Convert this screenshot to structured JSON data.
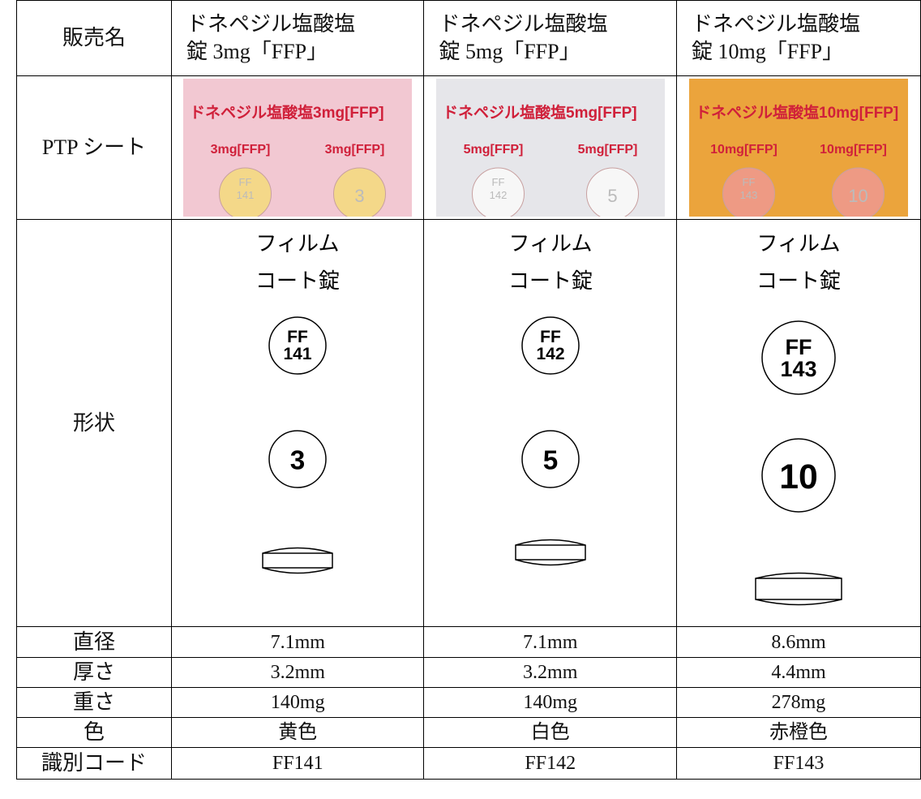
{
  "table": {
    "row_labels": [
      "販売名",
      "PTP シート",
      "形状",
      "直径",
      "厚さ",
      "重さ",
      "色",
      "識別コード"
    ],
    "products": [
      {
        "name": [
          "ドネペジル塩酸塩",
          "錠 3mg「FFP」"
        ],
        "ptp": {
          "title": "ドネペジル塩酸塩3mg[FFP]",
          "tab": "3mg[FFP]",
          "imprint": [
            "FF",
            "141"
          ],
          "back": "3"
        },
        "shape": {
          "form": [
            "フィルム",
            "コート錠"
          ],
          "front": [
            "FF",
            "141"
          ],
          "back": "3"
        },
        "diameter": "7.1mm",
        "thickness": "3.2mm",
        "weight": "140mg",
        "color": "黄色",
        "code": "FF141"
      },
      {
        "name": [
          "ドネペジル塩酸塩",
          "錠 5mg「FFP」"
        ],
        "ptp": {
          "title": "ドネペジル塩酸塩5mg[FFP]",
          "tab": "5mg[FFP]",
          "imprint": [
            "FF",
            "142"
          ],
          "back": "5"
        },
        "shape": {
          "form": [
            "フィルム",
            "コート錠"
          ],
          "front": [
            "FF",
            "142"
          ],
          "back": "5"
        },
        "diameter": "7.1mm",
        "thickness": "3.2mm",
        "weight": "140mg",
        "color": "白色",
        "code": "FF142"
      },
      {
        "name": [
          "ドネペジル塩酸塩",
          "錠 10mg「FFP」"
        ],
        "ptp": {
          "title": "ドネペジル塩酸塩10mg[FFP]",
          "tab": "10mg[FFP]",
          "imprint": [
            "FF",
            "143"
          ],
          "back": "10"
        },
        "shape": {
          "form": [
            "フィルム",
            "コート錠"
          ],
          "front": [
            "FF",
            "143"
          ],
          "back": "10"
        },
        "diameter": "8.6mm",
        "thickness": "4.4mm",
        "weight": "278mg",
        "color": "赤橙色",
        "code": "FF143"
      }
    ]
  }
}
